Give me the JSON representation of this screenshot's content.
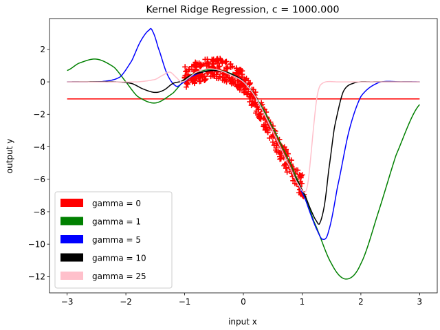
{
  "chart_data": {
    "type": "line",
    "title": "Kernel Ridge Regression, c = 1000.000",
    "xlabel": "input x",
    "ylabel": "output y",
    "xlim": [
      -3.3,
      3.3
    ],
    "ylim": [
      -13.0,
      3.9
    ],
    "xticks": [
      -3,
      -2,
      -1,
      0,
      1,
      2,
      3
    ],
    "yticks": [
      2,
      0,
      -2,
      -4,
      -6,
      -8,
      -10,
      -12
    ],
    "grid": false,
    "legend_position": "lower-left",
    "scatter": {
      "marker": "plus",
      "color": "#ff0000",
      "x_range": [
        -1.0,
        1.05
      ],
      "shape": "approximately y = 0.3 - 3.5*x^2 for x > 0, near 0.3 to 0.8 for x < 0",
      "points_x": [
        -0.95,
        -0.8,
        -0.6,
        -0.4,
        -0.2,
        0.0,
        0.2,
        0.4,
        0.6,
        0.8,
        0.95,
        1.05
      ],
      "points_y": [
        0.3,
        0.6,
        0.8,
        0.8,
        0.5,
        0.0,
        -1.2,
        -2.5,
        -4.0,
        -5.3,
        -6.2,
        -6.5
      ]
    },
    "series": [
      {
        "name": "gamma = 0",
        "color": "#ff0000",
        "x": [
          -3,
          3
        ],
        "y": [
          -1.05,
          -1.05
        ]
      },
      {
        "name": "gamma = 1",
        "color": "#008000",
        "x": [
          -3.0,
          -2.8,
          -2.5,
          -2.2,
          -2.0,
          -1.8,
          -1.5,
          -1.2,
          -1.0,
          -0.8,
          -0.5,
          -0.2,
          0.0,
          0.2,
          0.5,
          0.8,
          1.0,
          1.2,
          1.5,
          1.75,
          2.0,
          2.3,
          2.6,
          3.0
        ],
        "y": [
          0.7,
          1.15,
          1.4,
          0.9,
          0.0,
          -0.9,
          -1.3,
          -0.7,
          0.1,
          0.6,
          0.75,
          0.5,
          0.0,
          -0.9,
          -2.8,
          -5.0,
          -6.7,
          -8.6,
          -11.2,
          -12.15,
          -11.2,
          -8.0,
          -4.5,
          -1.4
        ]
      },
      {
        "name": "gamma = 5",
        "color": "#0000ff",
        "x": [
          -3.0,
          -2.4,
          -2.1,
          -1.9,
          -1.75,
          -1.6,
          -1.55,
          -1.45,
          -1.3,
          -1.15,
          -1.05,
          -0.9,
          -0.7,
          -0.5,
          -0.3,
          -0.1,
          0.0,
          0.2,
          0.4,
          0.6,
          0.8,
          0.95,
          1.05,
          1.15,
          1.25,
          1.35,
          1.45,
          1.6,
          1.8,
          2.0,
          2.3,
          2.7,
          3.0
        ],
        "y": [
          0.0,
          0.02,
          0.3,
          1.3,
          2.5,
          3.2,
          3.15,
          2.1,
          0.5,
          -0.25,
          -0.1,
          0.3,
          0.6,
          0.7,
          0.6,
          0.3,
          0.0,
          -0.9,
          -2.3,
          -3.8,
          -5.3,
          -6.4,
          -7.2,
          -8.2,
          -9.1,
          -9.7,
          -9.2,
          -6.5,
          -3.0,
          -0.9,
          -0.05,
          0.0,
          0.0
        ]
      },
      {
        "name": "gamma = 10",
        "color": "#000000",
        "x": [
          -3.0,
          -2.2,
          -1.9,
          -1.7,
          -1.5,
          -1.35,
          -1.2,
          -1.05,
          -0.9,
          -0.7,
          -0.5,
          -0.3,
          -0.1,
          0.0,
          0.2,
          0.4,
          0.6,
          0.8,
          0.95,
          1.05,
          1.15,
          1.25,
          1.3,
          1.38,
          1.45,
          1.55,
          1.7,
          1.9,
          2.2,
          3.0
        ],
        "y": [
          0.0,
          0.0,
          -0.1,
          -0.45,
          -0.65,
          -0.5,
          -0.1,
          0.05,
          0.4,
          0.6,
          0.7,
          0.6,
          0.3,
          0.0,
          -0.9,
          -2.3,
          -3.8,
          -5.3,
          -6.3,
          -7.0,
          -7.9,
          -8.6,
          -8.7,
          -7.6,
          -5.5,
          -2.8,
          -0.6,
          -0.05,
          0.0,
          0.0
        ]
      },
      {
        "name": "gamma = 25",
        "color": "#ffc0cb",
        "x": [
          -3.0,
          -1.8,
          -1.5,
          -1.35,
          -1.25,
          -1.15,
          -1.05,
          -0.95,
          -0.8,
          -0.6,
          -0.4,
          -0.2,
          0.0,
          0.2,
          0.4,
          0.6,
          0.8,
          0.95,
          1.05,
          1.1,
          1.15,
          1.2,
          1.25,
          1.3,
          1.4,
          1.6,
          3.0
        ],
        "y": [
          0.0,
          0.0,
          0.15,
          0.45,
          0.6,
          0.3,
          0.0,
          0.2,
          0.6,
          0.8,
          0.7,
          0.4,
          0.0,
          -0.9,
          -2.3,
          -3.8,
          -5.3,
          -6.4,
          -6.8,
          -6.2,
          -4.5,
          -2.6,
          -1.0,
          -0.25,
          0.0,
          0.0,
          0.0
        ]
      }
    ]
  }
}
